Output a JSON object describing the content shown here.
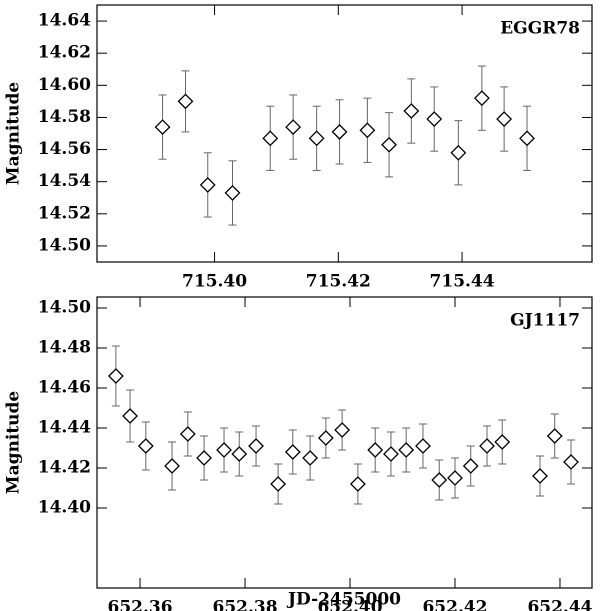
{
  "chart_data": [
    {
      "type": "scatter",
      "label": "EGGR78",
      "ylabel": "Magnitude",
      "x": [
        715.3916,
        715.3953,
        715.3989,
        715.4029,
        715.409,
        715.4127,
        715.4165,
        715.4202,
        715.4247,
        715.4282,
        715.4318,
        715.4355,
        715.4394,
        715.4432,
        715.4468,
        715.4505
      ],
      "values": [
        14.574,
        14.59,
        14.538,
        14.533,
        14.567,
        14.574,
        14.567,
        14.571,
        14.572,
        14.563,
        14.584,
        14.579,
        14.558,
        14.592,
        14.579,
        14.567
      ],
      "errors": [
        0.02,
        0.019,
        0.02,
        0.02,
        0.02,
        0.02,
        0.02,
        0.02,
        0.02,
        0.02,
        0.02,
        0.02,
        0.02,
        0.02,
        0.02,
        0.02
      ],
      "color": "#000000",
      "xlim": [
        715.381,
        715.461
      ],
      "ylim": [
        14.49,
        14.65
      ],
      "xticks": [
        {
          "value": 715.4,
          "label": "715.40"
        },
        {
          "value": 715.42,
          "label": "715.42"
        },
        {
          "value": 715.44,
          "label": "715.44"
        }
      ],
      "yticks": [
        {
          "value": 14.5,
          "label": "14.50"
        },
        14.52,
        14.54,
        14.56,
        14.58,
        {
          "value": 14.6,
          "label": "14.60"
        },
        14.62,
        14.64
      ]
    },
    {
      "type": "scatter",
      "label": "GJ1117",
      "ylabel": "Magnitude",
      "xlabel": "JD-2455000",
      "x": [
        652.3554,
        652.3581,
        652.3611,
        652.3661,
        652.3691,
        652.3722,
        652.376,
        652.3789,
        652.3821,
        652.3863,
        652.3891,
        652.3924,
        652.3954,
        652.3985,
        652.4015,
        652.4048,
        652.4078,
        652.4107,
        652.4139,
        652.417,
        652.42,
        652.423,
        652.4261,
        652.429,
        652.4362,
        652.439,
        652.4421
      ],
      "values": [
        14.466,
        14.446,
        14.431,
        14.421,
        14.437,
        14.425,
        14.429,
        14.427,
        14.431,
        14.412,
        14.428,
        14.425,
        14.435,
        14.439,
        14.412,
        14.429,
        14.427,
        14.429,
        14.431,
        14.414,
        14.415,
        14.421,
        14.431,
        14.433,
        14.416,
        14.436,
        14.423
      ],
      "errors": [
        0.015,
        0.013,
        0.012,
        0.012,
        0.011,
        0.011,
        0.011,
        0.011,
        0.01,
        0.01,
        0.011,
        0.011,
        0.01,
        0.01,
        0.01,
        0.011,
        0.011,
        0.011,
        0.011,
        0.01,
        0.01,
        0.01,
        0.01,
        0.011,
        0.01,
        0.011,
        0.011
      ],
      "color": "#000000",
      "xlim": [
        652.3518,
        652.4461
      ],
      "ylim": [
        14.36,
        14.5055
      ],
      "xticks": [
        {
          "value": 652.36,
          "label": "652.36"
        },
        {
          "value": 652.38,
          "label": "652.38"
        },
        {
          "value": 652.4,
          "label": "652.40"
        },
        {
          "value": 652.42,
          "label": "652.42"
        },
        {
          "value": 652.44,
          "label": "652.44"
        }
      ],
      "yticks": [
        {
          "value": 14.4,
          "label": "14.40"
        },
        14.42,
        14.44,
        14.46,
        14.48,
        {
          "value": 14.5,
          "label": "14.50"
        }
      ]
    }
  ]
}
